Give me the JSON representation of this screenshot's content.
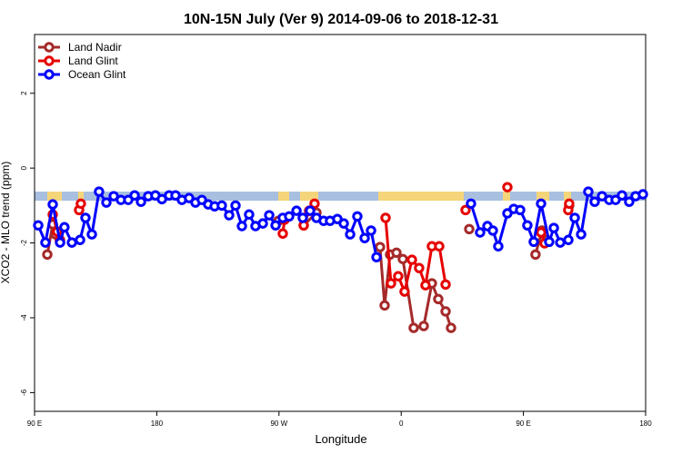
{
  "chart_data": {
    "type": "line",
    "title": "10N-15N July (Ver 9)   2014-09-06 to 2018-12-31",
    "x_label": "Longitude",
    "y_label": "XCO2 - MLO trend (ppm)",
    "xlim": [
      90,
      540
    ],
    "ylim": [
      -6.5,
      3.57
    ],
    "xticks": [
      {
        "value": 90,
        "label": "90 E"
      },
      180,
      {
        "value": 270,
        "label": "90 W"
      },
      {
        "value": 360,
        "label": "0"
      },
      {
        "value": 450,
        "label": "90 E"
      },
      {
        "value": 540,
        "label": "180"
      }
    ],
    "yticks": [
      -6,
      -4,
      -2,
      0,
      2
    ],
    "legend": "top-left",
    "series": [
      {
        "name": "Land Nadir",
        "color": "#a52a2a",
        "x": [
          99.4,
          103.4,
          105.4,
          108.7,
          null,
          269.5,
          null,
          288.2,
          297.6,
          null,
          344.4,
          347.8,
          351.8,
          356.5,
          361.2,
          369.2,
          376.6,
          382.6,
          387.3,
          392.7,
          396.7,
          null,
          410.1,
          null,
          458.9,
          463.6,
          467,
          null,
          483.7
        ],
        "values": [
          -2.31,
          -1.5,
          -1.77,
          -1.92,
          null,
          -1.41,
          null,
          -1.53,
          -1.19,
          null,
          -2.11,
          -3.67,
          -2.31,
          -2.26,
          -2.43,
          -4.27,
          -4.22,
          -3.08,
          -3.5,
          -3.83,
          -4.27,
          null,
          -1.63,
          null,
          -2.31,
          -1.67,
          -1.92,
          null,
          -1.0
        ]
      },
      {
        "name": "Land Glint",
        "color": "#e60000",
        "x": [
          103.4,
          106.7,
          108.7,
          null,
          122.8,
          124.1,
          null,
          272.8,
          274.1,
          null,
          288.2,
          292.2,
          296.2,
          null,
          348.5,
          352.5,
          357.8,
          362.5,
          367.9,
          373.2,
          377.9,
          382.6,
          388,
          392.7,
          null,
          407.4,
          null,
          438.2,
          null,
          463,
          465.6,
          null,
          483,
          483.7
        ],
        "values": [
          -1.24,
          -1.7,
          -1.94,
          null,
          -1.12,
          -0.95,
          null,
          -1.75,
          -1.38,
          null,
          -1.53,
          -1.14,
          -0.95,
          null,
          -1.33,
          -3.08,
          -2.89,
          -3.3,
          -2.45,
          -2.67,
          -3.13,
          -2.09,
          -2.09,
          -3.11,
          null,
          -1.12,
          null,
          -0.51,
          null,
          -1.72,
          -2.01,
          null,
          -1.12,
          -0.95
        ]
      },
      {
        "name": "Ocean Glint",
        "color": "#0000ff",
        "x": [
          92.7,
          98,
          103.4,
          108.8,
          112,
          117.5,
          123.5,
          127.5,
          132.2,
          137.5,
          142.9,
          148.3,
          153.6,
          159,
          163.7,
          168.4,
          173.7,
          179,
          183.8,
          189.1,
          193.8,
          198.5,
          203.8,
          208.5,
          213.2,
          217.9,
          222.6,
          227.9,
          233.3,
          238,
          242.7,
          248,
          252.7,
          258.1,
          262.8,
          267.5,
          272.8,
          277.5,
          282.9,
          287.5,
          292.9,
          297.6,
          302.9,
          307.6,
          313,
          317.7,
          322.4,
          327.7,
          333.1,
          337.8,
          341.8,
          null,
          411.4,
          418.1,
          423.5,
          427.5,
          431.5,
          438.2,
          442.9,
          447.6,
          452.9,
          457.6,
          463,
          469,
          472.4,
          477.1,
          483.1,
          487.8,
          492.5,
          497.8,
          502.5,
          507.9,
          513.2,
          517.9,
          522.6,
          527.9,
          532.6,
          538
        ],
        "values": [
          -1.53,
          -1.99,
          -0.97,
          -1.99,
          -1.58,
          -1.99,
          -1.92,
          -1.33,
          -1.77,
          -0.63,
          -0.92,
          -0.75,
          -0.85,
          -0.85,
          -0.73,
          -0.9,
          -0.75,
          -0.73,
          -0.83,
          -0.73,
          -0.73,
          -0.85,
          -0.8,
          -0.92,
          -0.85,
          -0.97,
          -1.02,
          -1.0,
          -1.26,
          -1.0,
          -1.55,
          -1.24,
          -1.55,
          -1.48,
          -1.26,
          -1.53,
          -1.33,
          -1.29,
          -1.14,
          -1.33,
          -1.14,
          -1.33,
          -1.41,
          -1.41,
          -1.36,
          -1.48,
          -1.77,
          -1.29,
          -1.87,
          -1.67,
          -2.38,
          null,
          -0.95,
          -1.72,
          -1.55,
          -1.67,
          -2.09,
          -1.21,
          -1.09,
          -1.12,
          -1.53,
          -1.97,
          -0.95,
          -1.97,
          -1.6,
          -1.99,
          -1.92,
          -1.33,
          -1.77,
          -0.63,
          -0.9,
          -0.75,
          -0.85,
          -0.85,
          -0.73,
          -0.9,
          -0.75,
          -0.7
        ]
      }
    ]
  }
}
